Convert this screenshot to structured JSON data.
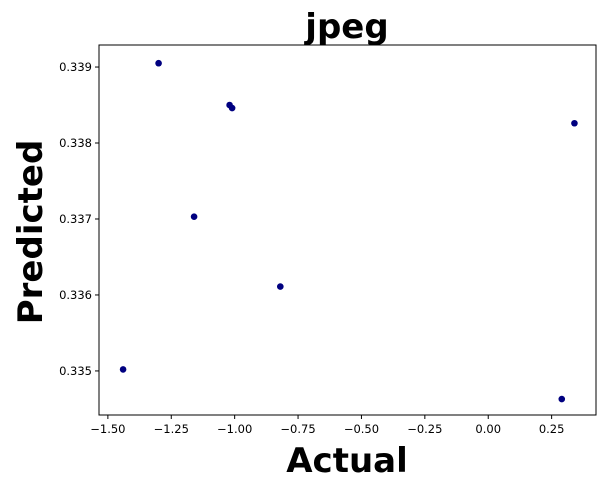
{
  "chart_data": {
    "type": "scatter",
    "title": "jpeg",
    "xlabel": "Actual",
    "ylabel": "Predicted",
    "xlim": [
      -1.535,
      0.425
    ],
    "ylim": [
      0.33442,
      0.33929
    ],
    "xticks": [
      -1.5,
      -1.25,
      -1.0,
      -0.75,
      -0.5,
      -0.25,
      0.0,
      0.25
    ],
    "xtick_labels": [
      "−1.50",
      "−1.25",
      "−1.00",
      "−0.75",
      "−0.50",
      "−0.25",
      "0.00",
      "0.25"
    ],
    "yticks": [
      0.335,
      0.336,
      0.337,
      0.338,
      0.339
    ],
    "ytick_labels": [
      "0.335",
      "0.336",
      "0.337",
      "0.338",
      "0.339"
    ],
    "grid": false,
    "marker_color": "#000080",
    "points": [
      {
        "x": -1.44,
        "y": 0.33502
      },
      {
        "x": -1.3,
        "y": 0.33905
      },
      {
        "x": -1.16,
        "y": 0.33703
      },
      {
        "x": -1.02,
        "y": 0.3385
      },
      {
        "x": -1.01,
        "y": 0.33846
      },
      {
        "x": -0.82,
        "y": 0.33611
      },
      {
        "x": 0.29,
        "y": 0.33463
      },
      {
        "x": 0.34,
        "y": 0.33826
      }
    ]
  }
}
